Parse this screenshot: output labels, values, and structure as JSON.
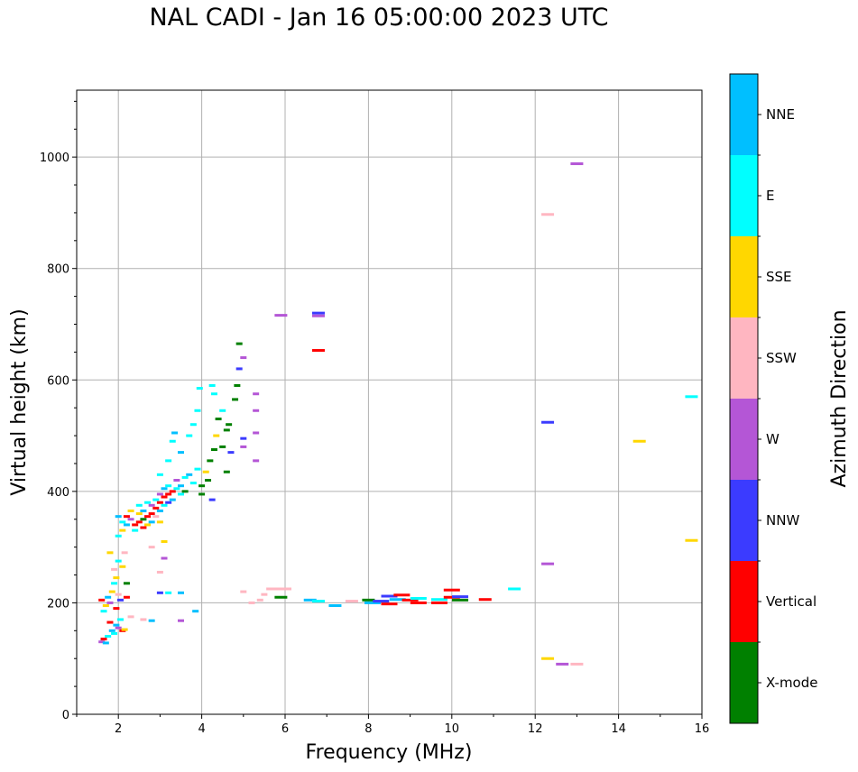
{
  "chart_data": {
    "type": "scatter",
    "title": "NAL CADI - Jan 16 05:00:00 2023 UTC",
    "xlabel": "Frequency (MHz)",
    "ylabel": "Virtual height (km)",
    "xlim": [
      1,
      16
    ],
    "ylim": [
      0,
      1120
    ],
    "xticks": [
      2,
      4,
      6,
      8,
      10,
      12,
      14,
      16
    ],
    "yticks": [
      0,
      200,
      400,
      600,
      800,
      1000
    ],
    "grid": true,
    "colorbar": {
      "label": "Azimuth Direction",
      "categories": [
        {
          "name": "X-mode",
          "color": "#008000"
        },
        {
          "name": "Vertical",
          "color": "#ff0000"
        },
        {
          "name": "NNW",
          "color": "#3b3bff"
        },
        {
          "name": "W",
          "color": "#b456d6"
        },
        {
          "name": "SSW",
          "color": "#ffb6c1"
        },
        {
          "name": "SSE",
          "color": "#ffd700"
        },
        {
          "name": "E",
          "color": "#00ffff"
        },
        {
          "name": "NNE",
          "color": "#00bfff"
        }
      ]
    },
    "points": [
      {
        "f": 1.6,
        "h": 130,
        "c": "W"
      },
      {
        "f": 1.65,
        "h": 135,
        "c": "Vertical"
      },
      {
        "f": 1.7,
        "h": 128,
        "c": "NNE"
      },
      {
        "f": 1.75,
        "h": 140,
        "c": "E"
      },
      {
        "f": 1.8,
        "h": 165,
        "c": "Vertical"
      },
      {
        "f": 1.85,
        "h": 150,
        "c": "NNE"
      },
      {
        "f": 1.9,
        "h": 145,
        "c": "E"
      },
      {
        "f": 1.95,
        "h": 160,
        "c": "NNE"
      },
      {
        "f": 2.0,
        "h": 155,
        "c": "W"
      },
      {
        "f": 2.05,
        "h": 170,
        "c": "E"
      },
      {
        "f": 2.1,
        "h": 150,
        "c": "Vertical"
      },
      {
        "f": 2.15,
        "h": 152,
        "c": "SSE"
      },
      {
        "f": 1.6,
        "h": 205,
        "c": "Vertical"
      },
      {
        "f": 1.65,
        "h": 185,
        "c": "E"
      },
      {
        "f": 1.7,
        "h": 195,
        "c": "SSE"
      },
      {
        "f": 1.75,
        "h": 210,
        "c": "NNE"
      },
      {
        "f": 1.8,
        "h": 200,
        "c": "W"
      },
      {
        "f": 1.85,
        "h": 220,
        "c": "SSE"
      },
      {
        "f": 1.9,
        "h": 235,
        "c": "E"
      },
      {
        "f": 1.95,
        "h": 190,
        "c": "Vertical"
      },
      {
        "f": 2.0,
        "h": 215,
        "c": "SSW"
      },
      {
        "f": 2.05,
        "h": 205,
        "c": "NNW"
      },
      {
        "f": 1.8,
        "h": 290,
        "c": "SSE"
      },
      {
        "f": 1.9,
        "h": 260,
        "c": "SSW"
      },
      {
        "f": 1.95,
        "h": 245,
        "c": "SSE"
      },
      {
        "f": 2.0,
        "h": 275,
        "c": "E"
      },
      {
        "f": 2.1,
        "h": 265,
        "c": "SSE"
      },
      {
        "f": 2.15,
        "h": 290,
        "c": "SSW"
      },
      {
        "f": 2.2,
        "h": 210,
        "c": "Vertical"
      },
      {
        "f": 2.2,
        "h": 235,
        "c": "X-mode"
      },
      {
        "f": 2.0,
        "h": 320,
        "c": "E"
      },
      {
        "f": 2.0,
        "h": 355,
        "c": "NNE"
      },
      {
        "f": 2.1,
        "h": 345,
        "c": "E"
      },
      {
        "f": 2.1,
        "h": 330,
        "c": "SSE"
      },
      {
        "f": 2.2,
        "h": 355,
        "c": "Vertical"
      },
      {
        "f": 2.2,
        "h": 340,
        "c": "NNE"
      },
      {
        "f": 2.3,
        "h": 350,
        "c": "W"
      },
      {
        "f": 2.3,
        "h": 365,
        "c": "SSE"
      },
      {
        "f": 2.4,
        "h": 340,
        "c": "Vertical"
      },
      {
        "f": 2.4,
        "h": 330,
        "c": "E"
      },
      {
        "f": 2.5,
        "h": 345,
        "c": "Vertical"
      },
      {
        "f": 2.5,
        "h": 360,
        "c": "SSE"
      },
      {
        "f": 2.5,
        "h": 375,
        "c": "E"
      },
      {
        "f": 2.6,
        "h": 335,
        "c": "Vertical"
      },
      {
        "f": 2.6,
        "h": 350,
        "c": "X-mode"
      },
      {
        "f": 2.6,
        "h": 365,
        "c": "NNE"
      },
      {
        "f": 2.7,
        "h": 355,
        "c": "Vertical"
      },
      {
        "f": 2.7,
        "h": 340,
        "c": "SSE"
      },
      {
        "f": 2.7,
        "h": 380,
        "c": "E"
      },
      {
        "f": 2.8,
        "h": 360,
        "c": "Vertical"
      },
      {
        "f": 2.8,
        "h": 375,
        "c": "W"
      },
      {
        "f": 2.8,
        "h": 345,
        "c": "NNE"
      },
      {
        "f": 2.9,
        "h": 370,
        "c": "Vertical"
      },
      {
        "f": 2.9,
        "h": 385,
        "c": "E"
      },
      {
        "f": 2.9,
        "h": 355,
        "c": "SSW"
      },
      {
        "f": 3.0,
        "h": 380,
        "c": "Vertical"
      },
      {
        "f": 3.0,
        "h": 365,
        "c": "NNE"
      },
      {
        "f": 3.0,
        "h": 395,
        "c": "W"
      },
      {
        "f": 3.0,
        "h": 345,
        "c": "SSE"
      },
      {
        "f": 3.1,
        "h": 390,
        "c": "Vertical"
      },
      {
        "f": 3.1,
        "h": 375,
        "c": "E"
      },
      {
        "f": 3.1,
        "h": 405,
        "c": "NNE"
      },
      {
        "f": 3.2,
        "h": 395,
        "c": "Vertical"
      },
      {
        "f": 3.2,
        "h": 380,
        "c": "NNW"
      },
      {
        "f": 3.2,
        "h": 410,
        "c": "E"
      },
      {
        "f": 3.3,
        "h": 400,
        "c": "Vertical"
      },
      {
        "f": 3.3,
        "h": 385,
        "c": "NNE"
      },
      {
        "f": 3.4,
        "h": 405,
        "c": "E"
      },
      {
        "f": 3.4,
        "h": 420,
        "c": "W"
      },
      {
        "f": 3.5,
        "h": 410,
        "c": "NNE"
      },
      {
        "f": 3.5,
        "h": 395,
        "c": "E"
      },
      {
        "f": 3.6,
        "h": 425,
        "c": "E"
      },
      {
        "f": 3.6,
        "h": 400,
        "c": "X-mode"
      },
      {
        "f": 3.7,
        "h": 430,
        "c": "NNE"
      },
      {
        "f": 3.8,
        "h": 415,
        "c": "E"
      },
      {
        "f": 3.9,
        "h": 440,
        "c": "E"
      },
      {
        "f": 3.1,
        "h": 310,
        "c": "SSE"
      },
      {
        "f": 3.1,
        "h": 280,
        "c": "W"
      },
      {
        "f": 3.0,
        "h": 255,
        "c": "SSW"
      },
      {
        "f": 2.8,
        "h": 300,
        "c": "SSW"
      },
      {
        "f": 3.0,
        "h": 430,
        "c": "E"
      },
      {
        "f": 3.2,
        "h": 455,
        "c": "E"
      },
      {
        "f": 3.3,
        "h": 490,
        "c": "E"
      },
      {
        "f": 3.35,
        "h": 505,
        "c": "NNE"
      },
      {
        "f": 3.5,
        "h": 470,
        "c": "NNE"
      },
      {
        "f": 3.7,
        "h": 500,
        "c": "E"
      },
      {
        "f": 3.8,
        "h": 520,
        "c": "E"
      },
      {
        "f": 3.9,
        "h": 545,
        "c": "E"
      },
      {
        "f": 3.95,
        "h": 585,
        "c": "E"
      },
      {
        "f": 4.0,
        "h": 395,
        "c": "X-mode"
      },
      {
        "f": 4.0,
        "h": 410,
        "c": "X-mode"
      },
      {
        "f": 4.1,
        "h": 435,
        "c": "SSE"
      },
      {
        "f": 4.15,
        "h": 420,
        "c": "X-mode"
      },
      {
        "f": 4.2,
        "h": 455,
        "c": "X-mode"
      },
      {
        "f": 4.25,
        "h": 385,
        "c": "NNW"
      },
      {
        "f": 4.3,
        "h": 475,
        "c": "X-mode"
      },
      {
        "f": 4.35,
        "h": 500,
        "c": "SSE"
      },
      {
        "f": 4.4,
        "h": 530,
        "c": "X-mode"
      },
      {
        "f": 4.5,
        "h": 545,
        "c": "E"
      },
      {
        "f": 4.5,
        "h": 480,
        "c": "X-mode"
      },
      {
        "f": 4.6,
        "h": 510,
        "c": "X-mode"
      },
      {
        "f": 4.6,
        "h": 435,
        "c": "X-mode"
      },
      {
        "f": 4.65,
        "h": 520,
        "c": "X-mode"
      },
      {
        "f": 4.7,
        "h": 470,
        "c": "NNW"
      },
      {
        "f": 4.8,
        "h": 565,
        "c": "X-mode"
      },
      {
        "f": 4.85,
        "h": 590,
        "c": "X-mode"
      },
      {
        "f": 4.9,
        "h": 620,
        "c": "NNW"
      },
      {
        "f": 4.9,
        "h": 665,
        "c": "X-mode"
      },
      {
        "f": 4.3,
        "h": 575,
        "c": "E"
      },
      {
        "f": 4.25,
        "h": 590,
        "c": "E"
      },
      {
        "f": 5.0,
        "h": 495,
        "c": "NNW"
      },
      {
        "f": 5.0,
        "h": 480,
        "c": "W"
      },
      {
        "f": 5.0,
        "h": 640,
        "c": "W"
      },
      {
        "f": 5.3,
        "h": 575,
        "c": "W"
      },
      {
        "f": 5.3,
        "h": 545,
        "c": "W"
      },
      {
        "f": 5.3,
        "h": 505,
        "c": "W"
      },
      {
        "f": 5.3,
        "h": 455,
        "c": "W"
      },
      {
        "f": 5.9,
        "h": 716,
        "c": "W"
      },
      {
        "f": 6.8,
        "h": 720,
        "c": "NNW"
      },
      {
        "f": 6.8,
        "h": 715,
        "c": "W"
      },
      {
        "f": 6.8,
        "h": 653,
        "c": "Vertical"
      },
      {
        "f": 5.0,
        "h": 220,
        "c": "SSW"
      },
      {
        "f": 5.2,
        "h": 200,
        "c": "SSW"
      },
      {
        "f": 5.4,
        "h": 205,
        "c": "SSW"
      },
      {
        "f": 5.5,
        "h": 215,
        "c": "SSW"
      },
      {
        "f": 5.7,
        "h": 225,
        "c": "SSW"
      },
      {
        "f": 5.9,
        "h": 210,
        "c": "X-mode"
      },
      {
        "f": 6.0,
        "h": 225,
        "c": "SSW"
      },
      {
        "f": 6.6,
        "h": 205,
        "c": "NNE"
      },
      {
        "f": 6.8,
        "h": 203,
        "c": "E"
      },
      {
        "f": 7.2,
        "h": 195,
        "c": "NNE"
      },
      {
        "f": 7.6,
        "h": 203,
        "c": "SSW"
      },
      {
        "f": 8.0,
        "h": 205,
        "c": "X-mode"
      },
      {
        "f": 8.1,
        "h": 200,
        "c": "NNE"
      },
      {
        "f": 8.3,
        "h": 203,
        "c": "NNW"
      },
      {
        "f": 8.5,
        "h": 212,
        "c": "NNW"
      },
      {
        "f": 8.5,
        "h": 198,
        "c": "Vertical"
      },
      {
        "f": 8.7,
        "h": 206,
        "c": "NNE"
      },
      {
        "f": 8.8,
        "h": 214,
        "c": "Vertical"
      },
      {
        "f": 9.0,
        "h": 205,
        "c": "Vertical"
      },
      {
        "f": 9.2,
        "h": 208,
        "c": "E"
      },
      {
        "f": 9.2,
        "h": 200,
        "c": "Vertical"
      },
      {
        "f": 9.7,
        "h": 206,
        "c": "E"
      },
      {
        "f": 9.7,
        "h": 200,
        "c": "Vertical"
      },
      {
        "f": 10.0,
        "h": 210,
        "c": "Vertical"
      },
      {
        "f": 10.0,
        "h": 223,
        "c": "Vertical"
      },
      {
        "f": 10.2,
        "h": 205,
        "c": "X-mode"
      },
      {
        "f": 10.2,
        "h": 211,
        "c": "NNW"
      },
      {
        "f": 10.8,
        "h": 206,
        "c": "Vertical"
      },
      {
        "f": 11.5,
        "h": 225,
        "c": "E"
      },
      {
        "f": 2.3,
        "h": 175,
        "c": "SSW"
      },
      {
        "f": 2.6,
        "h": 170,
        "c": "SSW"
      },
      {
        "f": 2.8,
        "h": 168,
        "c": "NNE"
      },
      {
        "f": 3.0,
        "h": 218,
        "c": "NNW"
      },
      {
        "f": 3.2,
        "h": 218,
        "c": "E"
      },
      {
        "f": 3.5,
        "h": 218,
        "c": "NNE"
      },
      {
        "f": 3.5,
        "h": 168,
        "c": "W"
      },
      {
        "f": 3.85,
        "h": 185,
        "c": "NNE"
      },
      {
        "f": 12.3,
        "h": 897,
        "c": "SSW"
      },
      {
        "f": 12.3,
        "h": 524,
        "c": "NNW"
      },
      {
        "f": 12.3,
        "h": 270,
        "c": "W"
      },
      {
        "f": 12.3,
        "h": 100,
        "c": "SSE"
      },
      {
        "f": 12.65,
        "h": 90,
        "c": "W"
      },
      {
        "f": 13.0,
        "h": 90,
        "c": "SSW"
      },
      {
        "f": 13.0,
        "h": 988,
        "c": "W"
      },
      {
        "f": 14.5,
        "h": 490,
        "c": "SSE"
      },
      {
        "f": 15.75,
        "h": 570,
        "c": "E"
      },
      {
        "f": 15.75,
        "h": 312,
        "c": "SSE"
      }
    ]
  }
}
